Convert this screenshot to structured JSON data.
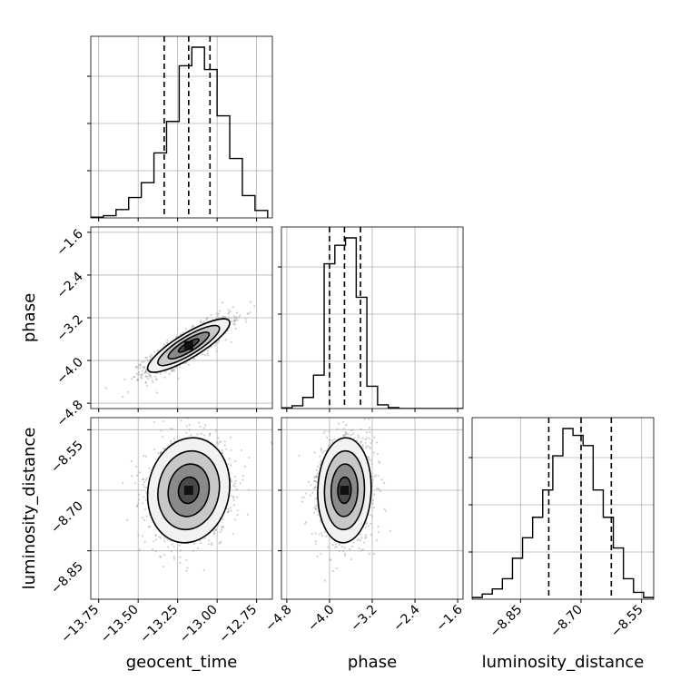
{
  "chart_data": {
    "type": "corner",
    "parameters": [
      "geocent_time",
      "phase",
      "luminosity_distance"
    ],
    "axis_labels": {
      "x": [
        "geocent_time",
        "phase",
        "luminosity_distance"
      ],
      "y": [
        "phase",
        "luminosity_distance"
      ]
    },
    "ranges": {
      "geocent_time": [
        -13.8,
        -12.65
      ],
      "phase": [
        -4.9,
        -1.5
      ],
      "luminosity_distance": [
        -8.97,
        -8.52
      ]
    },
    "ticks": {
      "geocent_time": [
        "−13.75",
        "−13.50",
        "−13.25",
        "−13.00",
        "−12.75"
      ],
      "phase_x": [
        "−4.8",
        "−4.0",
        "−3.2",
        "−2.4",
        "−1.6"
      ],
      "phase_y": [
        "−1.6",
        "−2.4",
        "−3.2",
        "−4.0",
        "−4.8"
      ],
      "luminosity_distance": [
        "−8.85",
        "−8.70",
        "−8.55"
      ]
    },
    "tick_values": {
      "geocent_time": [
        -13.75,
        -13.5,
        -13.25,
        -13.0,
        -12.75
      ],
      "phase": [
        -4.8,
        -4.0,
        -3.2,
        -2.4,
        -1.6
      ],
      "luminosity_distance": [
        -8.85,
        -8.7,
        -8.55
      ]
    },
    "histograms": {
      "geocent_time": {
        "edges": [
          -13.8,
          -13.72,
          -13.64,
          -13.56,
          -13.48,
          -13.4,
          -13.32,
          -13.24,
          -13.16,
          -13.08,
          -13.0,
          -12.92,
          -12.84,
          -12.76,
          -12.68
        ],
        "counts": [
          0.4,
          1.2,
          4.5,
          11,
          19,
          35,
          52,
          82,
          92,
          80,
          55,
          32,
          12,
          4
        ]
      },
      "phase": {
        "edges": [
          -4.9,
          -4.7,
          -4.5,
          -4.3,
          -4.1,
          -3.9,
          -3.7,
          -3.5,
          -3.3,
          -3.1,
          -2.9,
          -2.7,
          -2.5,
          -2.3,
          -2.1,
          -1.9,
          -1.7,
          -1.5
        ],
        "counts": [
          0.4,
          1.5,
          6,
          18,
          78,
          88,
          92,
          60,
          12,
          2,
          0.5,
          0,
          0,
          0,
          0,
          0,
          0
        ]
      },
      "luminosity_distance": {
        "edges": [
          -8.97,
          -8.945,
          -8.92,
          -8.895,
          -8.87,
          -8.845,
          -8.82,
          -8.795,
          -8.77,
          -8.745,
          -8.72,
          -8.695,
          -8.67,
          -8.645,
          -8.62,
          -8.595,
          -8.57,
          -8.545,
          -8.52
        ],
        "counts": [
          0.5,
          1.5,
          3,
          6,
          12,
          18,
          24,
          32,
          42,
          50,
          48,
          45,
          32,
          24,
          15,
          6,
          2,
          0.5
        ]
      }
    },
    "quantiles": {
      "geocent_time": [
        -13.335,
        -13.18,
        -13.045
      ],
      "phase": [
        -4.0,
        -3.72,
        -3.42
      ],
      "luminosity_distance": [
        -8.78,
        -8.7,
        -8.625
      ]
    },
    "joint": [
      {
        "x": "geocent_time",
        "y": "phase",
        "mean": [
          -13.18,
          -3.72
        ],
        "sd": [
          0.13,
          0.25
        ],
        "corr": 0.85
      },
      {
        "x": "geocent_time",
        "y": "luminosity_distance",
        "mean": [
          -13.18,
          -8.7
        ],
        "sd": [
          0.13,
          0.065
        ],
        "corr": 0.1
      },
      {
        "x": "phase",
        "y": "luminosity_distance",
        "mean": [
          -3.72,
          -8.7
        ],
        "sd": [
          0.25,
          0.065
        ],
        "corr": 0.05
      }
    ],
    "contour_levels": [
      0.118,
      0.393,
      0.675,
      0.865
    ],
    "grid": true,
    "colors": {
      "points": "#9a9a9a",
      "line": "#000000",
      "grid": "#b0b0b0"
    }
  }
}
